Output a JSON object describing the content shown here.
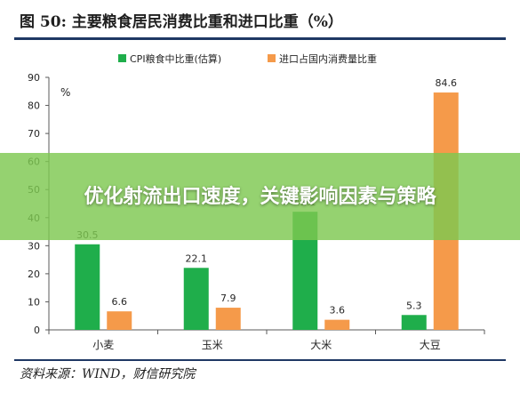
{
  "header": {
    "title": "图 50:  主要粮食居民消费比重和进口比重（%）"
  },
  "footer": {
    "source": "资料来源：WIND，财信研究院"
  },
  "overlay": {
    "headline": "优化射流出口速度，关键影响因素与策略"
  },
  "chart_data": {
    "type": "bar",
    "categories": [
      "小麦",
      "玉米",
      "大米",
      "大豆"
    ],
    "series": [
      {
        "name": "CPI粮食中比重(估算)",
        "color": "#1fae4b",
        "values": [
          30.5,
          22.1,
          42.1,
          5.3
        ]
      },
      {
        "name": "进口占国内消费量比重",
        "color": "#f59a4a",
        "values": [
          6.6,
          7.9,
          3.6,
          84.6
        ]
      }
    ],
    "ylabel": "%",
    "ylim": [
      0,
      90
    ],
    "yticks": [
      0,
      10,
      20,
      30,
      40,
      50,
      60,
      70,
      80,
      90
    ],
    "legend": "top",
    "grid": false
  }
}
